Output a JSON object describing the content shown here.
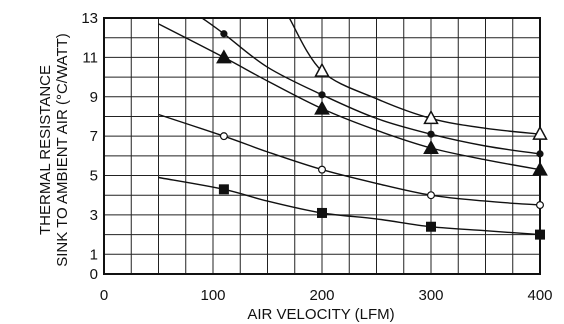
{
  "chart_data": {
    "type": "line",
    "xlabel": "AIR VELOCITY (LFM)",
    "ylabel_lines": [
      "THERMAL RESISTANCE",
      "SINK TO AMBIENT AIR (°C/WATT)"
    ],
    "xlim": [
      0,
      400
    ],
    "ylim": [
      0,
      13
    ],
    "x_ticks": [
      0,
      100,
      200,
      300,
      400
    ],
    "y_ticks": [
      0,
      1,
      3,
      5,
      7,
      9,
      11,
      13
    ],
    "grid": true,
    "series": [
      {
        "marker": "open-triangle",
        "curve": [
          [
            170,
            13.0
          ],
          [
            200,
            10.3
          ],
          [
            250,
            8.9
          ],
          [
            300,
            7.9
          ],
          [
            350,
            7.4
          ],
          [
            400,
            7.1
          ]
        ],
        "markers": [
          [
            200,
            10.3
          ],
          [
            300,
            7.9
          ],
          [
            400,
            7.1
          ]
        ]
      },
      {
        "marker": "filled-circle",
        "curve": [
          [
            90,
            13.0
          ],
          [
            110,
            12.2
          ],
          [
            150,
            10.5
          ],
          [
            200,
            9.1
          ],
          [
            250,
            7.9
          ],
          [
            300,
            7.1
          ],
          [
            350,
            6.5
          ],
          [
            400,
            6.1
          ]
        ],
        "markers": [
          [
            110,
            12.2
          ],
          [
            200,
            9.1
          ],
          [
            300,
            7.1
          ],
          [
            400,
            6.1
          ]
        ]
      },
      {
        "marker": "filled-triangle",
        "curve": [
          [
            50,
            12.7
          ],
          [
            110,
            11.0
          ],
          [
            150,
            9.8
          ],
          [
            200,
            8.4
          ],
          [
            250,
            7.3
          ],
          [
            300,
            6.4
          ],
          [
            350,
            5.8
          ],
          [
            400,
            5.3
          ]
        ],
        "markers": [
          [
            110,
            11.0
          ],
          [
            200,
            8.4
          ],
          [
            300,
            6.4
          ],
          [
            400,
            5.3
          ]
        ]
      },
      {
        "marker": "open-circle",
        "curve": [
          [
            50,
            8.1
          ],
          [
            110,
            7.0
          ],
          [
            150,
            6.2
          ],
          [
            200,
            5.3
          ],
          [
            250,
            4.6
          ],
          [
            300,
            4.0
          ],
          [
            350,
            3.7
          ],
          [
            400,
            3.5
          ]
        ],
        "markers": [
          [
            110,
            7.0
          ],
          [
            200,
            5.3
          ],
          [
            300,
            4.0
          ],
          [
            400,
            3.5
          ]
        ]
      },
      {
        "marker": "filled-square",
        "curve": [
          [
            50,
            4.9
          ],
          [
            110,
            4.3
          ],
          [
            150,
            3.7
          ],
          [
            200,
            3.1
          ],
          [
            250,
            2.8
          ],
          [
            300,
            2.4
          ],
          [
            350,
            2.2
          ],
          [
            400,
            2.0
          ]
        ],
        "markers": [
          [
            110,
            4.3
          ],
          [
            200,
            3.1
          ],
          [
            300,
            2.4
          ],
          [
            400,
            2.0
          ]
        ]
      }
    ]
  }
}
